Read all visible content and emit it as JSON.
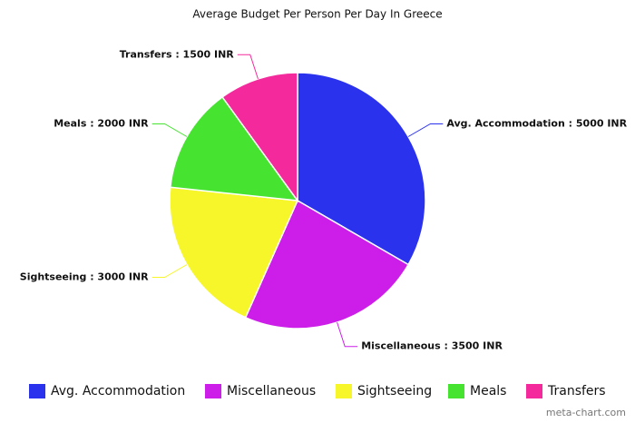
{
  "chart_data": {
    "type": "pie",
    "title": "Average Budget Per Person Per Day In Greece",
    "categories": [
      "Avg. Accommodation",
      "Miscellaneous",
      "Sightseeing",
      "Meals",
      "Transfers"
    ],
    "values": [
      5000,
      3500,
      3000,
      2000,
      1500
    ],
    "value_labels": [
      "Avg. Accommodation : 5000 INR",
      "Miscellaneous : 3500 INR",
      "Sightseeing : 3000 INR",
      "Meals : 2000 INR",
      "Transfers : 1500 INR"
    ],
    "colors": [
      "#2b32ee",
      "#cc1ee8",
      "#f6f62a",
      "#46e330",
      "#f42a9c"
    ],
    "legend": "bottom",
    "watermark": "meta-chart.com"
  }
}
